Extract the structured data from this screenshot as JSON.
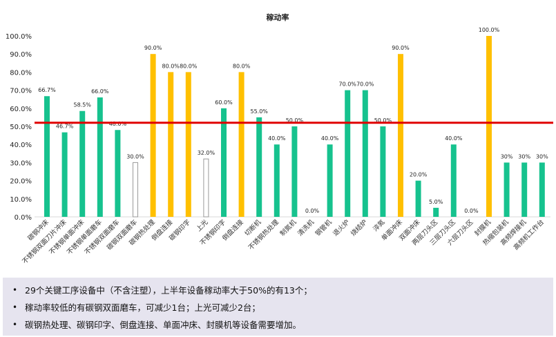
{
  "chart_data": {
    "type": "bar",
    "title": "稼动率",
    "xlabel": "",
    "ylabel": "",
    "ylim": [
      0,
      100
    ],
    "yticks": [
      "0.0%",
      "10.0%",
      "20.0%",
      "30.0%",
      "40.0%",
      "50.0%",
      "60.0%",
      "70.0%",
      "80.0%",
      "90.0%",
      "100.0%"
    ],
    "grid": false,
    "legend": "none",
    "reference_line": 52,
    "reference_color": "#e00000",
    "categories": [
      "碳钢冲床",
      "不锈钢双面刀片冲床",
      "不锈钢单面冲床",
      "不锈钢单面磨车",
      "不锈钢双面磨车",
      "碳钢双面磨车",
      "碳钢热处理",
      "倒盘连接",
      "碳钢印字",
      "上光",
      "不锈钢印字",
      "倒盘连接",
      "切断机",
      "不锈钢热处理",
      "制氮机",
      "清洗机",
      "钢管机",
      "退火炉",
      "烧结炉",
      "淬氮",
      "单面冲床",
      "双面冲床",
      "两层刀头区",
      "三层刀头区",
      "六层刀头区",
      "封膜机",
      "热缩包装机",
      "高频焊接机",
      "高频机工作台"
    ],
    "values": [
      66.7,
      46.7,
      58.5,
      66.0,
      48.0,
      30.0,
      90.0,
      80.0,
      80.0,
      32.0,
      60.0,
      80.0,
      55.0,
      40.0,
      50.0,
      0.0,
      40.0,
      70.0,
      70.0,
      50.0,
      90.0,
      20.0,
      5.0,
      40.0,
      0.0,
      100.0,
      30.0,
      30.0,
      30.0
    ],
    "labels": [
      "66.7%",
      "46.7%",
      "58.5%",
      "66.0%",
      "48.0%",
      "30.0%",
      "90.0%",
      "80.0%",
      "80.0%",
      "32.0%",
      "60.0%",
      "80.0%",
      "55.0%",
      "40.0%",
      "50.0%",
      "0.0%",
      "40.0%",
      "70.0%",
      "70.0%",
      "50.0%",
      "90.0%",
      "20.0%",
      "5.0%",
      "40.0%",
      "0.0%",
      "100.0%",
      "30%",
      "30%",
      "30%"
    ],
    "bar_styles": [
      "green",
      "green",
      "green",
      "green",
      "green",
      "hollow",
      "yellow",
      "yellow",
      "yellow",
      "hollow",
      "green",
      "yellow",
      "green",
      "green",
      "green",
      "green",
      "green",
      "green",
      "green",
      "green",
      "yellow",
      "green",
      "green",
      "green",
      "green",
      "yellow",
      "green",
      "green",
      "green"
    ],
    "colors": {
      "green": "#16c28e",
      "yellow": "#ffc000",
      "hollow_stroke": "#9a9a9a",
      "axis": "#d9d9d9"
    }
  },
  "notes": [
    "29个关键工序设备中（不含注塑），上半年设备稼动率大于50%的有13个；",
    "稼动率较低的有碳钢双面磨车，可减少1台；上光可减少2台；",
    "碳钢热处理、碳钢印字、倒盘连接、单面冲床、封膜机等设备需要增加。"
  ]
}
